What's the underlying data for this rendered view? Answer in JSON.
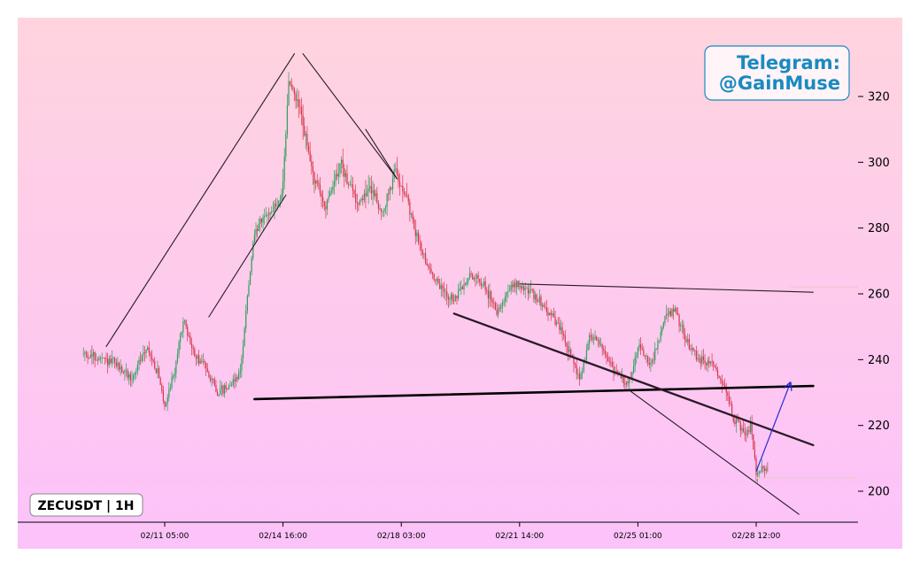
{
  "chart_data": {
    "type": "candlestick",
    "symbol_label": "ZECUSDT | 1H",
    "watermark": [
      "Telegram:",
      "@GainMuse"
    ],
    "x_tick_labels": [
      "02/11 05:00",
      "02/14 16:00",
      "02/18 03:00",
      "02/21 14:00",
      "02/25 01:00",
      "02/28 12:00"
    ],
    "y_ticks": [
      200,
      220,
      240,
      260,
      280,
      300,
      320
    ],
    "ylim": [
      192,
      337
    ],
    "grid": false,
    "colors": {
      "up": "#2e9e5b",
      "down": "#d6354a",
      "accent": "#1a8ac0",
      "arrow": "#2b2bd8"
    },
    "price_path": [
      [
        "02/08 20:00",
        242
      ],
      [
        "02/09 08:00",
        240
      ],
      [
        "02/09 18:00",
        239
      ],
      [
        "02/10 06:00",
        234
      ],
      [
        "02/10 16:00",
        244
      ],
      [
        "02/11 00:00",
        236
      ],
      [
        "02/11 05:00",
        226
      ],
      [
        "02/11 12:00",
        237
      ],
      [
        "02/11 18:00",
        252
      ],
      [
        "02/12 02:00",
        241
      ],
      [
        "02/12 10:00",
        238
      ],
      [
        "02/12 18:00",
        230
      ],
      [
        "02/13 02:00",
        232
      ],
      [
        "02/13 10:00",
        236
      ],
      [
        "02/13 14:00",
        255
      ],
      [
        "02/13 20:00",
        278
      ],
      [
        "02/14 04:00",
        284
      ],
      [
        "02/14 12:00",
        287
      ],
      [
        "02/14 16:00",
        292
      ],
      [
        "02/14 20:00",
        325
      ],
      [
        "02/15 04:00",
        316
      ],
      [
        "02/15 12:00",
        298
      ],
      [
        "02/15 22:00",
        286
      ],
      [
        "02/16 08:00",
        300
      ],
      [
        "02/16 20:00",
        288
      ],
      [
        "02/17 06:00",
        292
      ],
      [
        "02/17 14:00",
        284
      ],
      [
        "02/17 22:00",
        297
      ],
      [
        "02/18 04:00",
        293
      ],
      [
        "02/18 12:00",
        280
      ],
      [
        "02/18 22:00",
        268
      ],
      [
        "02/19 06:00",
        262
      ],
      [
        "02/19 16:00",
        258
      ],
      [
        "02/20 04:00",
        266
      ],
      [
        "02/20 14:00",
        262
      ],
      [
        "02/20 22:00",
        255
      ],
      [
        "02/21 10:00",
        263
      ],
      [
        "02/21 20:00",
        261
      ],
      [
        "02/22 08:00",
        256
      ],
      [
        "02/22 20:00",
        248
      ],
      [
        "02/23 08:00",
        234
      ],
      [
        "02/23 16:00",
        248
      ],
      [
        "02/24 00:00",
        244
      ],
      [
        "02/24 08:00",
        237
      ],
      [
        "02/24 18:00",
        232
      ],
      [
        "02/25 02:00",
        245
      ],
      [
        "02/25 10:00",
        238
      ],
      [
        "02/25 20:00",
        252
      ],
      [
        "02/26 02:00",
        256
      ],
      [
        "02/26 12:00",
        245
      ],
      [
        "02/26 20:00",
        240
      ],
      [
        "02/27 06:00",
        238
      ],
      [
        "02/27 14:00",
        232
      ],
      [
        "02/27 20:00",
        222
      ],
      [
        "02/28 04:00",
        218
      ],
      [
        "02/28 08:00",
        220
      ],
      [
        "02/28 12:00",
        206
      ],
      [
        "02/28 20:00",
        207
      ]
    ],
    "annotations": [
      {
        "name": "wave-line-1",
        "from": [
          "02/09 12:00",
          244
        ],
        "to": [
          "02/15 00:00",
          333
        ],
        "weight": "thin"
      },
      {
        "name": "wave-line-2",
        "from": [
          "02/12 12:00",
          253
        ],
        "to": [
          "02/14 18:00",
          290
        ],
        "weight": "thin"
      },
      {
        "name": "wave-line-3",
        "from": [
          "02/15 06:00",
          333
        ],
        "to": [
          "02/18 00:00",
          295
        ],
        "weight": "thin"
      },
      {
        "name": "wave-line-4",
        "from": [
          "02/17 02:00",
          310
        ],
        "to": [
          "02/18 00:00",
          295
        ],
        "weight": "thin"
      },
      {
        "name": "neckline",
        "from": [
          "02/13 20:00",
          228
        ],
        "to": [
          "03/02 04:00",
          232
        ],
        "weight": "bold"
      },
      {
        "name": "trendline-upper",
        "from": [
          "02/21 14:00",
          263
        ],
        "to": [
          "03/02 04:00",
          260.5
        ],
        "weight": "thin"
      },
      {
        "name": "trendline-mid",
        "from": [
          "02/19 16:00",
          254
        ],
        "to": [
          "03/02 04:00",
          214
        ],
        "weight": "medium"
      },
      {
        "name": "trendline-lower",
        "from": [
          "02/24 18:00",
          231
        ],
        "to": [
          "03/01 18:00",
          193
        ],
        "weight": "thin"
      }
    ],
    "support_lines": [
      {
        "name": "resistance-hline",
        "from": "03/01 12:00",
        "y": 262
      },
      {
        "name": "support-hline",
        "from": "02/28 12:00",
        "y": 204
      }
    ],
    "projection_arrow": {
      "from": [
        "02/28 12:00",
        206
      ],
      "to": [
        "03/01 12:00",
        233
      ]
    }
  }
}
